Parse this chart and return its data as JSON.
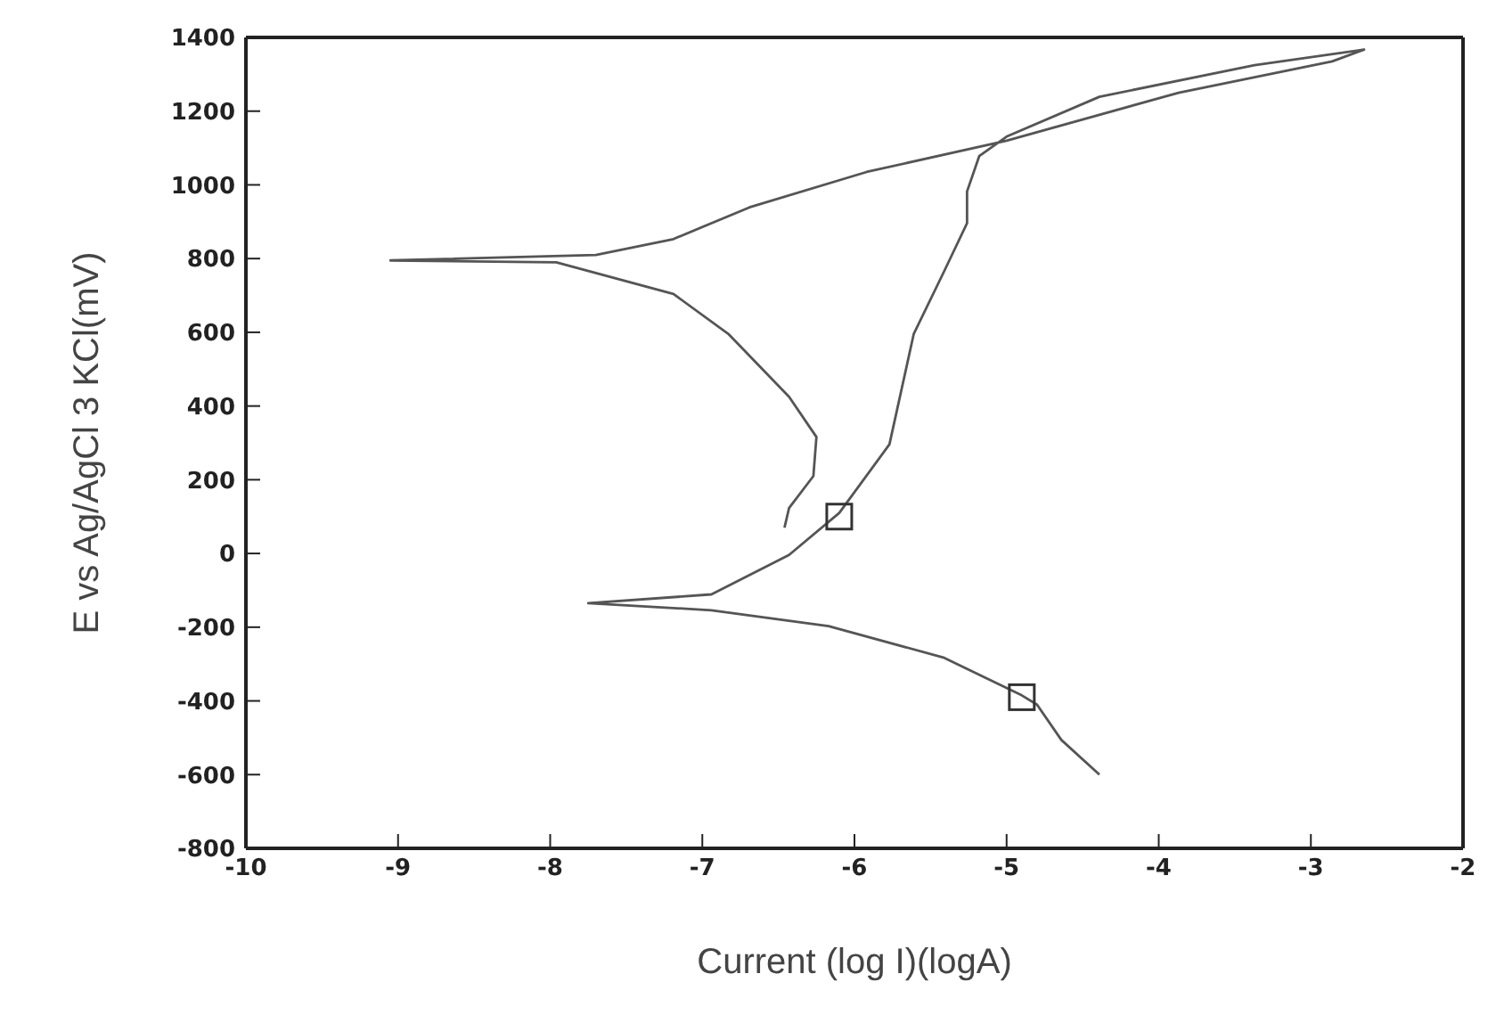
{
  "chart_data": {
    "type": "line",
    "xlabel": "Current (log I)(logA)",
    "ylabel": "E vs Ag/AgCl 3 KCl(mV)",
    "xlim": [
      -10,
      -2
    ],
    "xticks": [
      -10,
      -9,
      -8,
      -7,
      -6,
      -5,
      -4,
      -3,
      -2
    ],
    "ylim": [
      -800,
      1400
    ],
    "yticks": [
      -800,
      -600,
      -400,
      -200,
      0,
      200,
      400,
      600,
      800,
      1000,
      1200,
      1400
    ],
    "line_style": "solid",
    "marker": "none",
    "series": [
      {
        "color": "#555555",
        "x": [
          -4.39,
          -4.64,
          -4.8,
          -4.9,
          -5.41,
          -6.17,
          -6.94,
          -7.75,
          -6.94,
          -6.43,
          -6.1,
          -5.77,
          -5.61,
          -5.41,
          -5.26,
          -5.26,
          -5.18,
          -5.0,
          -4.39,
          -3.37,
          -2.65,
          -2.86,
          -3.87,
          -5.0,
          -5.92,
          -6.69,
          -7.19,
          -7.7,
          -9.05,
          -7.96,
          -7.19,
          -6.83,
          -6.43,
          -6.25,
          -6.27,
          -6.43,
          -6.46
        ],
        "values": [
          -600,
          -506,
          -410,
          -385,
          -283,
          -197,
          -154,
          -135,
          -111,
          -4,
          110,
          296,
          596,
          766,
          896,
          982,
          1078,
          1131,
          1239,
          1325,
          1367,
          1335,
          1250,
          1120,
          1035,
          939,
          853,
          810,
          795,
          790,
          704,
          596,
          425,
          316,
          210,
          123,
          70
        ]
      },
      {
        "type": "scatter",
        "marker": "square",
        "color": "#333333",
        "x": [
          -6.1,
          -4.9
        ],
        "values": [
          100,
          -390
        ]
      }
    ]
  }
}
